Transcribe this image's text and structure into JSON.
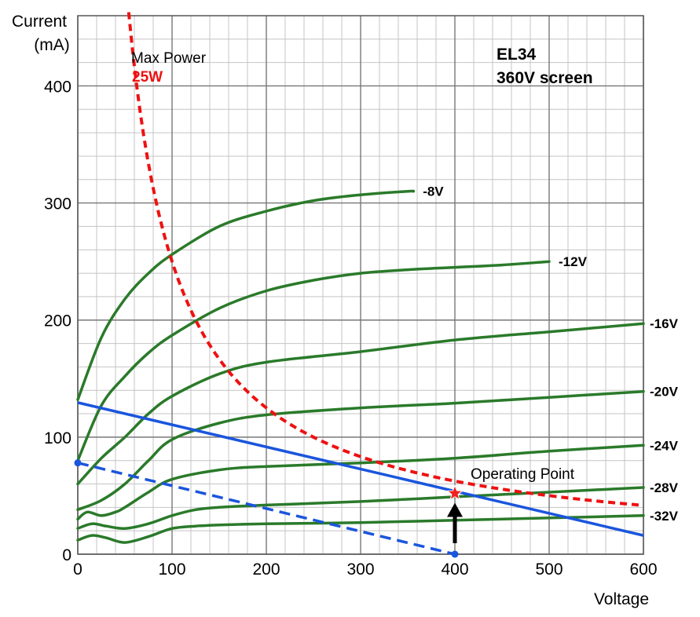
{
  "chart_data": {
    "type": "line",
    "title": "",
    "tube": {
      "line1": "EL34",
      "line2": "360V screen"
    },
    "xlabel": "Voltage",
    "ylabel_line1": "Current",
    "ylabel_line2": "(mA)",
    "xlim": [
      0,
      600
    ],
    "ylim": [
      0,
      460
    ],
    "xticks": [
      0,
      100,
      200,
      300,
      400,
      500,
      600
    ],
    "yticks": [
      0,
      100,
      200,
      300,
      400
    ],
    "grid": true,
    "series": [
      {
        "name": "-8V",
        "color": "#2a7a2a",
        "x": [
          0,
          25,
          50,
          75,
          100,
          150,
          200,
          250,
          300,
          350,
          356
        ],
        "y": [
          132,
          185,
          218,
          240,
          256,
          280,
          293,
          302,
          307,
          310,
          310
        ]
      },
      {
        "name": "-12V",
        "color": "#2a7a2a",
        "x": [
          0,
          25,
          50,
          75,
          100,
          150,
          200,
          250,
          300,
          350,
          400,
          450,
          500
        ],
        "y": [
          80,
          127,
          152,
          172,
          187,
          210,
          225,
          234,
          240,
          243,
          245,
          247,
          250
        ]
      },
      {
        "name": "-16V",
        "color": "#2a7a2a",
        "x": [
          0,
          25,
          50,
          75,
          100,
          150,
          200,
          300,
          400,
          500,
          600
        ],
        "y": [
          60,
          82,
          100,
          120,
          135,
          154,
          164,
          173,
          183,
          190,
          197
        ]
      },
      {
        "name": "-20V",
        "color": "#2a7a2a",
        "x": [
          0,
          25,
          50,
          75,
          100,
          150,
          200,
          300,
          400,
          500,
          600
        ],
        "y": [
          38,
          46,
          60,
          80,
          98,
          112,
          119,
          125,
          129,
          134,
          139
        ]
      },
      {
        "name": "-24V",
        "color": "#2a7a2a",
        "x": [
          0,
          10,
          25,
          40,
          50,
          75,
          100,
          150,
          200,
          300,
          400,
          500,
          600
        ],
        "y": [
          30,
          36,
          33,
          36,
          40,
          53,
          64,
          72,
          75,
          78,
          82,
          88,
          93
        ]
      },
      {
        "name": "-28V",
        "color": "#2a7a2a",
        "x": [
          0,
          15,
          30,
          50,
          75,
          100,
          125,
          150,
          200,
          300,
          400,
          500,
          600
        ],
        "y": [
          22,
          26,
          24,
          22,
          26,
          33,
          38,
          40,
          42,
          45,
          49,
          53,
          57
        ]
      },
      {
        "name": "-32V",
        "color": "#2a7a2a",
        "x": [
          0,
          15,
          30,
          50,
          75,
          100,
          125,
          150,
          200,
          300,
          400,
          500,
          600
        ],
        "y": [
          12,
          16,
          14,
          10,
          15,
          22,
          24,
          25,
          26,
          27,
          29,
          31,
          33
        ]
      }
    ],
    "max_power": {
      "label": "Max Power",
      "watts": 25,
      "watts_label": "25W",
      "color": "#ee1111",
      "x_from": 54,
      "x_to": 600
    },
    "load_line": {
      "color": "#1a55dd",
      "x": [
        0,
        600
      ],
      "y": [
        129.5,
        16
      ]
    },
    "dc_load_line": {
      "color": "#1a55dd",
      "x": [
        0,
        400
      ],
      "y": [
        78,
        0
      ]
    },
    "operating_point": {
      "label": "Operating Point",
      "x": 400,
      "y": 52,
      "color": "#ee2222"
    }
  }
}
